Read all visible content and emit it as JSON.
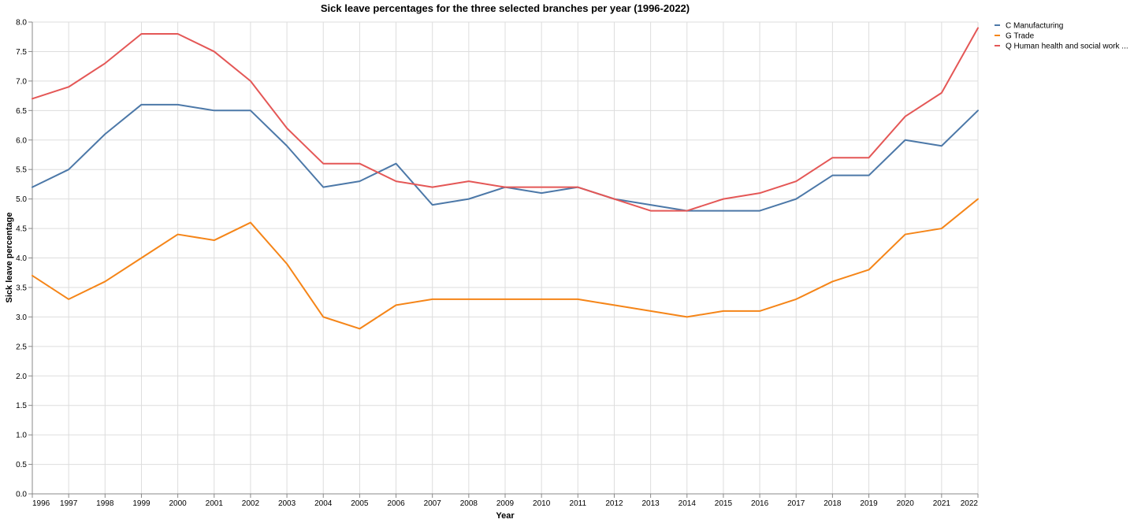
{
  "chart_data": {
    "type": "line",
    "title": "Sick leave percentages for the three selected branches per year (1996-2022)",
    "xlabel": "Year",
    "ylabel": "Sick leave percentage",
    "ylim": [
      0,
      8
    ],
    "yticks": [
      "0.0",
      "0.5",
      "1.0",
      "1.5",
      "2.0",
      "2.5",
      "3.0",
      "3.5",
      "4.0",
      "4.5",
      "5.0",
      "5.5",
      "6.0",
      "6.5",
      "7.0",
      "7.5",
      "8.0"
    ],
    "grid": true,
    "legend_position": "top-right",
    "x": [
      1996,
      1997,
      1998,
      1999,
      2000,
      2001,
      2002,
      2003,
      2004,
      2005,
      2006,
      2007,
      2008,
      2009,
      2010,
      2011,
      2012,
      2013,
      2014,
      2015,
      2016,
      2017,
      2018,
      2019,
      2020,
      2021,
      2022
    ],
    "series": [
      {
        "name": "C Manufacturing",
        "color": "#4c78a8",
        "values": [
          5.2,
          5.5,
          6.1,
          6.6,
          6.6,
          6.5,
          6.5,
          5.9,
          5.2,
          5.3,
          5.6,
          4.9,
          5.0,
          5.2,
          5.1,
          5.2,
          5.0,
          4.9,
          4.8,
          4.8,
          4.8,
          5.0,
          5.4,
          5.4,
          6.0,
          5.9,
          6.5
        ]
      },
      {
        "name": "G Trade",
        "color": "#f58518",
        "values": [
          3.7,
          3.3,
          3.6,
          4.0,
          4.4,
          4.3,
          4.6,
          3.9,
          3.0,
          2.8,
          3.2,
          3.3,
          3.3,
          3.3,
          3.3,
          3.3,
          3.2,
          3.1,
          3.0,
          3.1,
          3.1,
          3.3,
          3.6,
          3.8,
          4.4,
          4.5,
          5.0
        ]
      },
      {
        "name": "Q Human health and social work ...",
        "color": "#e45756",
        "values": [
          6.7,
          6.9,
          7.3,
          7.8,
          7.8,
          7.5,
          7.0,
          6.2,
          5.6,
          5.6,
          5.3,
          5.2,
          5.3,
          5.2,
          5.2,
          5.2,
          5.0,
          4.8,
          4.8,
          5.0,
          5.1,
          5.3,
          5.7,
          5.7,
          6.4,
          6.8,
          7.9
        ]
      }
    ]
  }
}
